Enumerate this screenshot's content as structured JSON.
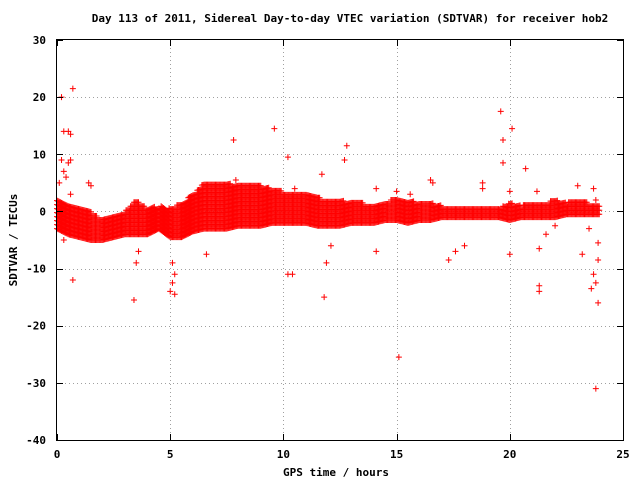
{
  "chart_data": {
    "type": "scatter",
    "title": "Day 113 of 2011, Sidereal Day-to-day VTEC variation (SDTVAR) for receiver hob2",
    "xlabel": "GPS time / hours",
    "ylabel": "SDTVAR / TECUs",
    "xlim": [
      0,
      25
    ],
    "ylim": [
      -40,
      30
    ],
    "xticks": [
      0,
      5,
      10,
      15,
      20,
      25
    ],
    "yticks": [
      -40,
      -30,
      -20,
      -10,
      0,
      10,
      20,
      30
    ],
    "grid": true,
    "marker": "+",
    "color": "#ff0000",
    "dense_band": [
      [
        0.0,
        -3.0,
        2.5
      ],
      [
        0.5,
        -4.0,
        1.5
      ],
      [
        1.0,
        -4.5,
        0.5
      ],
      [
        1.5,
        -5.0,
        0.0
      ],
      [
        2.0,
        -5.0,
        -1.5
      ],
      [
        2.5,
        -4.5,
        -0.5
      ],
      [
        3.0,
        -4.0,
        0.0
      ],
      [
        3.5,
        -4.0,
        2.0
      ],
      [
        4.0,
        -4.0,
        0.5
      ],
      [
        4.5,
        -3.0,
        1.0
      ],
      [
        5.0,
        -4.5,
        0.5
      ],
      [
        5.5,
        -4.5,
        1.5
      ],
      [
        6.0,
        -3.5,
        3.0
      ],
      [
        6.5,
        -3.0,
        5.0
      ],
      [
        7.0,
        -3.0,
        5.0
      ],
      [
        7.5,
        -3.0,
        5.0
      ],
      [
        8.0,
        -2.5,
        4.5
      ],
      [
        8.5,
        -2.5,
        5.0
      ],
      [
        9.0,
        -2.5,
        4.5
      ],
      [
        9.5,
        -2.0,
        4.0
      ],
      [
        10.0,
        -2.0,
        3.5
      ],
      [
        10.5,
        -2.0,
        3.5
      ],
      [
        11.0,
        -2.0,
        3.0
      ],
      [
        11.5,
        -2.5,
        2.5
      ],
      [
        12.0,
        -2.5,
        2.0
      ],
      [
        12.5,
        -2.5,
        2.0
      ],
      [
        13.0,
        -2.0,
        1.5
      ],
      [
        13.5,
        -2.0,
        1.5
      ],
      [
        14.0,
        -2.0,
        1.0
      ],
      [
        14.5,
        -1.5,
        1.5
      ],
      [
        15.0,
        -1.5,
        2.5
      ],
      [
        15.5,
        -2.0,
        2.0
      ],
      [
        16.0,
        -1.5,
        1.5
      ],
      [
        16.5,
        -1.5,
        1.5
      ],
      [
        17.0,
        -1.0,
        1.0
      ],
      [
        17.5,
        -1.0,
        1.0
      ],
      [
        18.0,
        -1.0,
        0.5
      ],
      [
        18.5,
        -1.0,
        0.5
      ],
      [
        19.0,
        -1.0,
        0.5
      ],
      [
        19.5,
        -1.0,
        0.5
      ],
      [
        20.0,
        -1.5,
        1.5
      ],
      [
        20.5,
        -1.0,
        1.0
      ],
      [
        21.0,
        -1.0,
        1.5
      ],
      [
        21.5,
        -1.0,
        1.5
      ],
      [
        22.0,
        -1.0,
        2.0
      ],
      [
        22.5,
        -0.5,
        1.5
      ],
      [
        23.0,
        -0.5,
        2.0
      ],
      [
        23.5,
        -0.5,
        1.5
      ],
      [
        24.0,
        -0.5,
        1.0
      ]
    ],
    "outliers": [
      [
        0.2,
        20
      ],
      [
        0.7,
        21.5
      ],
      [
        0.3,
        14
      ],
      [
        0.5,
        14
      ],
      [
        0.6,
        13.5
      ],
      [
        0.2,
        9
      ],
      [
        0.5,
        8.5
      ],
      [
        0.6,
        9
      ],
      [
        0.3,
        7
      ],
      [
        0.4,
        6
      ],
      [
        0.1,
        5
      ],
      [
        0.6,
        3
      ],
      [
        0.7,
        -12
      ],
      [
        0.3,
        -5
      ],
      [
        1.4,
        5
      ],
      [
        1.5,
        4.5
      ],
      [
        3.4,
        -15.5
      ],
      [
        3.5,
        -9
      ],
      [
        3.6,
        -7
      ],
      [
        5.1,
        -9
      ],
      [
        5.2,
        -11
      ],
      [
        5.1,
        -12.5
      ],
      [
        5.2,
        -14.5
      ],
      [
        5.0,
        -14
      ],
      [
        6.6,
        -7.5
      ],
      [
        7.8,
        12.5
      ],
      [
        7.9,
        5.5
      ],
      [
        9.6,
        14.5
      ],
      [
        10.2,
        9.5
      ],
      [
        10.2,
        -11
      ],
      [
        10.4,
        -11
      ],
      [
        10.5,
        4
      ],
      [
        11.7,
        6.5
      ],
      [
        11.8,
        -15
      ],
      [
        11.9,
        -9
      ],
      [
        12.1,
        -6
      ],
      [
        12.8,
        11.5
      ],
      [
        12.7,
        9
      ],
      [
        14.1,
        4
      ],
      [
        14.1,
        -7
      ],
      [
        15.0,
        3.5
      ],
      [
        15.1,
        -25.5
      ],
      [
        15.6,
        3
      ],
      [
        16.5,
        5.5
      ],
      [
        16.6,
        5
      ],
      [
        17.3,
        -8.5
      ],
      [
        17.6,
        -7
      ],
      [
        18.0,
        -6
      ],
      [
        18.8,
        5
      ],
      [
        18.8,
        4
      ],
      [
        19.6,
        17.5
      ],
      [
        19.7,
        12.5
      ],
      [
        19.7,
        8.5
      ],
      [
        20.1,
        14.5
      ],
      [
        20.0,
        3.5
      ],
      [
        20.0,
        -7.5
      ],
      [
        20.7,
        7.5
      ],
      [
        21.2,
        3.5
      ],
      [
        21.3,
        -13
      ],
      [
        21.3,
        -14
      ],
      [
        21.3,
        -6.5
      ],
      [
        21.6,
        -4
      ],
      [
        22.0,
        -2.5
      ],
      [
        23.0,
        4.5
      ],
      [
        23.2,
        -7.5
      ],
      [
        23.7,
        4
      ],
      [
        23.8,
        2
      ],
      [
        23.7,
        -11
      ],
      [
        23.9,
        -16
      ],
      [
        23.8,
        -12.5
      ],
      [
        23.6,
        -13.5
      ],
      [
        23.9,
        -8.5
      ],
      [
        23.8,
        -31
      ],
      [
        23.9,
        -5.5
      ],
      [
        23.5,
        -3
      ]
    ]
  }
}
